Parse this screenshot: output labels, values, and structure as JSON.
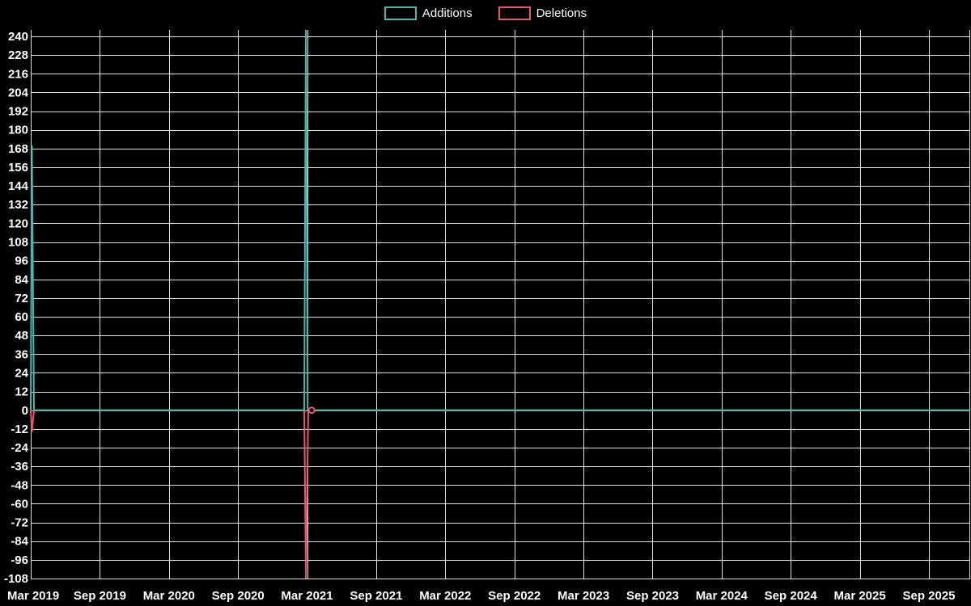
{
  "chart_data": {
    "type": "line",
    "title": "",
    "legend_position": "top-center",
    "grid": true,
    "background_color": "#000000",
    "grid_color": "#e0e0e0",
    "text_color": "#ffffff",
    "x_month_origin": "Mar 2019",
    "x_tick_labels": [
      "Mar 2019",
      "Sep 2019",
      "Mar 2020",
      "Sep 2020",
      "Mar 2021",
      "Sep 2021",
      "Mar 2022",
      "Sep 2022",
      "Mar 2023",
      "Sep 2023",
      "Mar 2024",
      "Sep 2024",
      "Mar 2025",
      "Sep 2025"
    ],
    "y_ticks": [
      240,
      228,
      216,
      204,
      192,
      180,
      168,
      156,
      144,
      132,
      120,
      108,
      96,
      84,
      72,
      60,
      48,
      36,
      24,
      12,
      0,
      -12,
      -24,
      -36,
      -48,
      -60,
      -72,
      -84,
      -96,
      -108
    ],
    "ylim": [
      -108,
      240
    ],
    "series": [
      {
        "name": "Additions",
        "color": "#46b8ae",
        "points_month_value": [
          [
            0,
            0
          ],
          [
            0.1,
            170
          ],
          [
            0.28,
            0
          ],
          [
            23.75,
            0
          ],
          [
            23.9,
            252
          ],
          [
            24.05,
            0
          ],
          [
            81.6,
            0
          ]
        ]
      },
      {
        "name": "Deletions",
        "color": "#e7586e",
        "points_month_value": [
          [
            0,
            0
          ],
          [
            0.1,
            -14
          ],
          [
            0.28,
            0
          ],
          [
            23.75,
            0
          ],
          [
            23.9,
            -108
          ],
          [
            24.1,
            0
          ],
          [
            81.6,
            0
          ]
        ]
      }
    ],
    "spikes": [
      {
        "approx_date": "Mar 2019",
        "additions": 170,
        "deletions": -14
      },
      {
        "approx_date": "Feb 2021",
        "additions": 252,
        "additions_clipped_above": 240,
        "deletions": -108
      }
    ],
    "marker": {
      "series": "Deletions",
      "month": 24.4,
      "value": 0
    }
  }
}
